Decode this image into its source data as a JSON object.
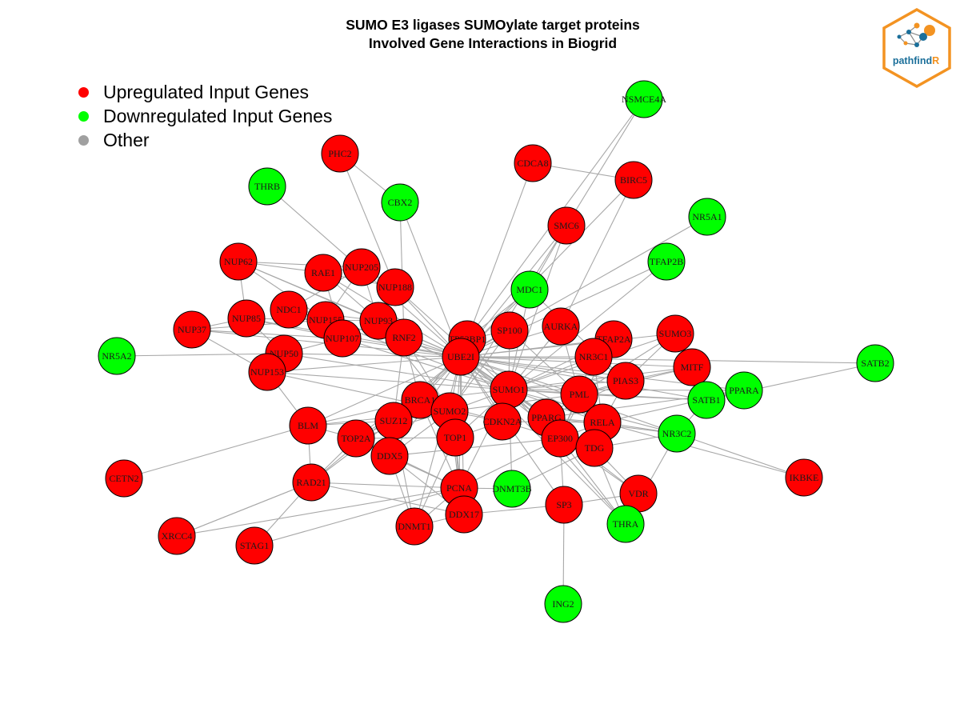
{
  "title": {
    "line1": "SUMO E3 ligases SUMOylate target proteins",
    "line2": "Involved Gene Interactions in Biogrid"
  },
  "legend": {
    "items": [
      {
        "label": "Upregulated Input Genes",
        "color": "#ff0000"
      },
      {
        "label": "Downregulated Input Genes",
        "color": "#00ff00"
      },
      {
        "label": "Other",
        "color": "#a0a0a0"
      }
    ]
  },
  "logo": {
    "text_main": "pathfind",
    "text_accent": "R",
    "accent_color": "#f39322",
    "text_color": "#1b6f9a"
  },
  "colors": {
    "up": "#ff0000",
    "down": "#00ff00",
    "edge": "#a8a8a8",
    "node_border": "#000000"
  },
  "network": {
    "nodes": [
      {
        "id": "NSMCE4A",
        "group": "down"
      },
      {
        "id": "PHC2",
        "group": "up"
      },
      {
        "id": "CDCA8",
        "group": "up"
      },
      {
        "id": "BIRC5",
        "group": "up"
      },
      {
        "id": "THRB",
        "group": "down"
      },
      {
        "id": "CBX2",
        "group": "down"
      },
      {
        "id": "NR5A1",
        "group": "down"
      },
      {
        "id": "SMC6",
        "group": "up"
      },
      {
        "id": "TFAP2B",
        "group": "down"
      },
      {
        "id": "NUP62",
        "group": "up"
      },
      {
        "id": "RAE1",
        "group": "up"
      },
      {
        "id": "NUP205",
        "group": "up"
      },
      {
        "id": "NUP188",
        "group": "up"
      },
      {
        "id": "MDC1",
        "group": "down"
      },
      {
        "id": "NDC1",
        "group": "up"
      },
      {
        "id": "NUP85",
        "group": "up"
      },
      {
        "id": "NUP37",
        "group": "up"
      },
      {
        "id": "NUP155",
        "group": "up"
      },
      {
        "id": "NUP93",
        "group": "up"
      },
      {
        "id": "SP100",
        "group": "up"
      },
      {
        "id": "AURKA",
        "group": "up"
      },
      {
        "id": "SUMO3",
        "group": "up"
      },
      {
        "id": "NR5A2",
        "group": "down"
      },
      {
        "id": "NUP107",
        "group": "up"
      },
      {
        "id": "RNF2",
        "group": "up"
      },
      {
        "id": "TP53BP1",
        "group": "up"
      },
      {
        "id": "TFAP2A",
        "group": "up"
      },
      {
        "id": "NUP50",
        "group": "up"
      },
      {
        "id": "UBE2I",
        "group": "up"
      },
      {
        "id": "NR3C1",
        "group": "up"
      },
      {
        "id": "SATB2",
        "group": "down"
      },
      {
        "id": "NUP153",
        "group": "up"
      },
      {
        "id": "MITF",
        "group": "up"
      },
      {
        "id": "PIAS3",
        "group": "up"
      },
      {
        "id": "SUMO1",
        "group": "up"
      },
      {
        "id": "PPARA",
        "group": "down"
      },
      {
        "id": "BRCA1",
        "group": "up"
      },
      {
        "id": "PML",
        "group": "up"
      },
      {
        "id": "SATB1",
        "group": "down"
      },
      {
        "id": "SUMO2",
        "group": "up"
      },
      {
        "id": "BLM",
        "group": "up"
      },
      {
        "id": "SUZ12",
        "group": "up"
      },
      {
        "id": "PPARG",
        "group": "up"
      },
      {
        "id": "CDKN2A",
        "group": "up"
      },
      {
        "id": "RELA",
        "group": "up"
      },
      {
        "id": "NR3C2",
        "group": "down"
      },
      {
        "id": "TOP2A",
        "group": "up"
      },
      {
        "id": "TOP1",
        "group": "up"
      },
      {
        "id": "EP300",
        "group": "up"
      },
      {
        "id": "TDG",
        "group": "up"
      },
      {
        "id": "DDX5",
        "group": "up"
      },
      {
        "id": "CETN2",
        "group": "up"
      },
      {
        "id": "IKBKE",
        "group": "up"
      },
      {
        "id": "RAD21",
        "group": "up"
      },
      {
        "id": "PCNA",
        "group": "up"
      },
      {
        "id": "DNMT3B",
        "group": "down"
      },
      {
        "id": "VDR",
        "group": "up"
      },
      {
        "id": "SP3",
        "group": "up"
      },
      {
        "id": "DDX17",
        "group": "up"
      },
      {
        "id": "THRA",
        "group": "down"
      },
      {
        "id": "XRCC4",
        "group": "up"
      },
      {
        "id": "DNMT1",
        "group": "up"
      },
      {
        "id": "STAG1",
        "group": "up"
      },
      {
        "id": "ING2",
        "group": "down"
      }
    ],
    "edges": [
      [
        "NSMCE4A",
        "SMC6"
      ],
      [
        "NSMCE4A",
        "TP53BP1"
      ],
      [
        "CDCA8",
        "BIRC5"
      ],
      [
        "CDCA8",
        "UBE2I"
      ],
      [
        "BIRC5",
        "AURKA"
      ],
      [
        "BIRC5",
        "UBE2I"
      ],
      [
        "PHC2",
        "CBX2"
      ],
      [
        "PHC2",
        "NUP188"
      ],
      [
        "CBX2",
        "RNF2"
      ],
      [
        "CBX2",
        "UBE2I"
      ],
      [
        "NR5A1",
        "UBE2I"
      ],
      [
        "TFAP2B",
        "UBE2I"
      ],
      [
        "TFAP2B",
        "SUMO1"
      ],
      [
        "SMC6",
        "UBE2I"
      ],
      [
        "SMC6",
        "SUMO1"
      ],
      [
        "SMC6",
        "SUMO2"
      ],
      [
        "SMC6",
        "MDC1"
      ],
      [
        "MDC1",
        "UBE2I"
      ],
      [
        "MDC1",
        "TP53BP1"
      ],
      [
        "MDC1",
        "SUMO1"
      ],
      [
        "MDC1",
        "PIAS3"
      ],
      [
        "NUP62",
        "RAE1"
      ],
      [
        "NUP62",
        "NUP205"
      ],
      [
        "NUP62",
        "NUP93"
      ],
      [
        "NUP62",
        "NUP155"
      ],
      [
        "NUP62",
        "NUP85"
      ],
      [
        "NUP62",
        "UBE2I"
      ],
      [
        "RAE1",
        "NUP205"
      ],
      [
        "RAE1",
        "NUP188"
      ],
      [
        "RAE1",
        "NUP93"
      ],
      [
        "RAE1",
        "UBE2I"
      ],
      [
        "RAE1",
        "NUP107"
      ],
      [
        "NUP205",
        "NUP188"
      ],
      [
        "NUP205",
        "NUP93"
      ],
      [
        "NUP205",
        "NUP155"
      ],
      [
        "NUP205",
        "NDC1"
      ],
      [
        "NUP188",
        "NUP93"
      ],
      [
        "NUP188",
        "UBE2I"
      ],
      [
        "NUP188",
        "SUMO1"
      ],
      [
        "NDC1",
        "NUP155"
      ],
      [
        "NDC1",
        "NUP93"
      ],
      [
        "NDC1",
        "NUP107"
      ],
      [
        "NDC1",
        "UBE2I"
      ],
      [
        "NUP85",
        "NUP107"
      ],
      [
        "NUP85",
        "NUP155"
      ],
      [
        "NUP85",
        "NUP50"
      ],
      [
        "NUP85",
        "NUP37"
      ],
      [
        "NUP85",
        "UBE2I"
      ],
      [
        "NUP37",
        "NUP107"
      ],
      [
        "NUP37",
        "NUP155"
      ],
      [
        "NUP37",
        "NUP153"
      ],
      [
        "NUP37",
        "UBE2I"
      ],
      [
        "NUP155",
        "NUP93"
      ],
      [
        "NUP155",
        "NUP107"
      ],
      [
        "NUP155",
        "UBE2I"
      ],
      [
        "NUP155",
        "SUMO1"
      ],
      [
        "NUP93",
        "NUP107"
      ],
      [
        "NUP93",
        "UBE2I"
      ],
      [
        "NUP93",
        "SUMO2"
      ],
      [
        "NUP107",
        "NUP50"
      ],
      [
        "NUP107",
        "UBE2I"
      ],
      [
        "NUP107",
        "SUMO1"
      ],
      [
        "NUP50",
        "NUP153"
      ],
      [
        "NUP50",
        "UBE2I"
      ],
      [
        "NUP50",
        "SUMO1"
      ],
      [
        "NUP153",
        "UBE2I"
      ],
      [
        "NUP153",
        "SUMO1"
      ],
      [
        "NUP153",
        "SUMO2"
      ],
      [
        "NUP153",
        "BLM"
      ],
      [
        "NR5A2",
        "NUP50"
      ],
      [
        "RNF2",
        "UBE2I"
      ],
      [
        "RNF2",
        "SUZ12"
      ],
      [
        "RNF2",
        "SUMO1"
      ],
      [
        "RNF2",
        "BRCA1"
      ],
      [
        "RNF2",
        "SUMO2"
      ],
      [
        "TP53BP1",
        "UBE2I"
      ],
      [
        "TP53BP1",
        "SUMO1"
      ],
      [
        "TP53BP1",
        "BRCA1"
      ],
      [
        "TP53BP1",
        "SP100"
      ],
      [
        "SP100",
        "UBE2I"
      ],
      [
        "SP100",
        "PML"
      ],
      [
        "SP100",
        "SUMO1"
      ],
      [
        "SP100",
        "SUMO2"
      ],
      [
        "AURKA",
        "UBE2I"
      ],
      [
        "AURKA",
        "SUMO1"
      ],
      [
        "AURKA",
        "PML"
      ],
      [
        "SUMO3",
        "UBE2I"
      ],
      [
        "SUMO3",
        "PML"
      ],
      [
        "SUMO3",
        "PIAS3"
      ],
      [
        "SUMO3",
        "SUMO1"
      ],
      [
        "TFAP2A",
        "UBE2I"
      ],
      [
        "TFAP2A",
        "SUMO1"
      ],
      [
        "TFAP2A",
        "EP300"
      ],
      [
        "NR3C1",
        "UBE2I"
      ],
      [
        "NR3C1",
        "SUMO1"
      ],
      [
        "NR3C1",
        "PIAS3"
      ],
      [
        "NR3C1",
        "EP300"
      ],
      [
        "NR3C1",
        "RELA"
      ],
      [
        "SATB2",
        "UBE2I"
      ],
      [
        "SATB2",
        "SATB1"
      ],
      [
        "MITF",
        "UBE2I"
      ],
      [
        "MITF",
        "PIAS3"
      ],
      [
        "MITF",
        "SUMO1"
      ],
      [
        "PIAS3",
        "UBE2I"
      ],
      [
        "PIAS3",
        "SUMO1"
      ],
      [
        "PIAS3",
        "PML"
      ],
      [
        "PIAS3",
        "RELA"
      ],
      [
        "PIAS3",
        "PPARG"
      ],
      [
        "UBE2I",
        "SUMO1"
      ],
      [
        "UBE2I",
        "SUMO2"
      ],
      [
        "UBE2I",
        "BRCA1"
      ],
      [
        "UBE2I",
        "PML"
      ],
      [
        "UBE2I",
        "TOP1"
      ],
      [
        "UBE2I",
        "TOP2A"
      ],
      [
        "UBE2I",
        "PCNA"
      ],
      [
        "UBE2I",
        "EP300"
      ],
      [
        "UBE2I",
        "PPARG"
      ],
      [
        "UBE2I",
        "RELA"
      ],
      [
        "UBE2I",
        "TDG"
      ],
      [
        "UBE2I",
        "VDR"
      ],
      [
        "UBE2I",
        "SP3"
      ],
      [
        "UBE2I",
        "DDX5"
      ],
      [
        "UBE2I",
        "DDX17"
      ],
      [
        "UBE2I",
        "DNMT1"
      ],
      [
        "UBE2I",
        "BLM"
      ],
      [
        "UBE2I",
        "SUZ12"
      ],
      [
        "UBE2I",
        "CDKN2A"
      ],
      [
        "UBE2I",
        "PPARA"
      ],
      [
        "UBE2I",
        "SATB1"
      ],
      [
        "UBE2I",
        "NR3C2"
      ],
      [
        "UBE2I",
        "THRA"
      ],
      [
        "UBE2I",
        "THRB"
      ],
      [
        "UBE2I",
        "RAD21"
      ],
      [
        "SUMO1",
        "SUMO2"
      ],
      [
        "SUMO1",
        "PML"
      ],
      [
        "SUMO1",
        "BRCA1"
      ],
      [
        "SUMO1",
        "TOP1"
      ],
      [
        "SUMO1",
        "PCNA"
      ],
      [
        "SUMO1",
        "EP300"
      ],
      [
        "SUMO1",
        "PPARG"
      ],
      [
        "SUMO1",
        "RELA"
      ],
      [
        "SUMO1",
        "TDG"
      ],
      [
        "SUMO1",
        "CDKN2A"
      ],
      [
        "SUMO1",
        "DNMT3B"
      ],
      [
        "SUMO1",
        "SATB1"
      ],
      [
        "SUMO1",
        "PPARA"
      ],
      [
        "SUMO1",
        "NR3C2"
      ],
      [
        "SUMO1",
        "THRA"
      ],
      [
        "SUMO2",
        "BRCA1"
      ],
      [
        "SUMO2",
        "TOP1"
      ],
      [
        "SUMO2",
        "TOP2A"
      ],
      [
        "SUMO2",
        "BLM"
      ],
      [
        "SUMO2",
        "PCNA"
      ],
      [
        "SUMO2",
        "SUZ12"
      ],
      [
        "SUMO2",
        "PML"
      ],
      [
        "SUMO2",
        "CDKN2A"
      ],
      [
        "SUMO2",
        "DDX5"
      ],
      [
        "BRCA1",
        "BLM"
      ],
      [
        "BRCA1",
        "TOP2A"
      ],
      [
        "BRCA1",
        "SUZ12"
      ],
      [
        "BRCA1",
        "PCNA"
      ],
      [
        "BRCA1",
        "RAD21"
      ],
      [
        "BRCA1",
        "CDKN2A"
      ],
      [
        "PML",
        "PPARG"
      ],
      [
        "PML",
        "RELA"
      ],
      [
        "PML",
        "EP300"
      ],
      [
        "PML",
        "TDG"
      ],
      [
        "PML",
        "SATB1"
      ],
      [
        "PML",
        "MITF"
      ],
      [
        "BLM",
        "TOP2A"
      ],
      [
        "BLM",
        "RAD21"
      ],
      [
        "BLM",
        "SUZ12"
      ],
      [
        "BLM",
        "CETN2"
      ],
      [
        "SUZ12",
        "DDX5"
      ],
      [
        "SUZ12",
        "TOP2A"
      ],
      [
        "SUZ12",
        "DNMT1"
      ],
      [
        "PPARG",
        "EP300"
      ],
      [
        "PPARG",
        "RELA"
      ],
      [
        "PPARG",
        "NR3C2"
      ],
      [
        "CDKN2A",
        "TOP1"
      ],
      [
        "CDKN2A",
        "EP300"
      ],
      [
        "CDKN2A",
        "RELA"
      ],
      [
        "RELA",
        "EP300"
      ],
      [
        "RELA",
        "TDG"
      ],
      [
        "RELA",
        "IKBKE"
      ],
      [
        "RELA",
        "NR3C2"
      ],
      [
        "EP300",
        "TDG"
      ],
      [
        "EP300",
        "SP3"
      ],
      [
        "EP300",
        "VDR"
      ],
      [
        "EP300",
        "THRA"
      ],
      [
        "EP300",
        "DDX5"
      ],
      [
        "EP300",
        "PCNA"
      ],
      [
        "TDG",
        "VDR"
      ],
      [
        "TDG",
        "THRA"
      ],
      [
        "TDG",
        "DNMT3B"
      ],
      [
        "TDG",
        "NR3C2"
      ],
      [
        "TOP2A",
        "RAD21"
      ],
      [
        "TOP2A",
        "TOP1"
      ],
      [
        "TOP2A",
        "DDX5"
      ],
      [
        "TOP2A",
        "PCNA"
      ],
      [
        "TOP1",
        "PCNA"
      ],
      [
        "TOP1",
        "DDX17"
      ],
      [
        "TOP1",
        "DNMT1"
      ],
      [
        "DDX5",
        "DDX17"
      ],
      [
        "DDX5",
        "DNMT1"
      ],
      [
        "DDX5",
        "PCNA"
      ],
      [
        "PCNA",
        "DNMT1"
      ],
      [
        "PCNA",
        "DNMT3B"
      ],
      [
        "PCNA",
        "DDX17"
      ],
      [
        "PCNA",
        "RAD21"
      ],
      [
        "DDX17",
        "SP3"
      ],
      [
        "DDX17",
        "DNMT1"
      ],
      [
        "SP3",
        "ING2"
      ],
      [
        "SP3",
        "VDR"
      ],
      [
        "RAD21",
        "STAG1"
      ],
      [
        "RAD21",
        "XRCC4"
      ],
      [
        "RAD21",
        "DDX17"
      ],
      [
        "XRCC4",
        "PCNA"
      ],
      [
        "XRCC4",
        "RAD21"
      ],
      [
        "STAG1",
        "PCNA"
      ],
      [
        "IKBKE",
        "NR3C2"
      ],
      [
        "NR3C2",
        "SATB1"
      ],
      [
        "NR3C2",
        "THRA"
      ],
      [
        "PPARA",
        "PPARG"
      ],
      [
        "PPARA",
        "RELA"
      ]
    ]
  }
}
